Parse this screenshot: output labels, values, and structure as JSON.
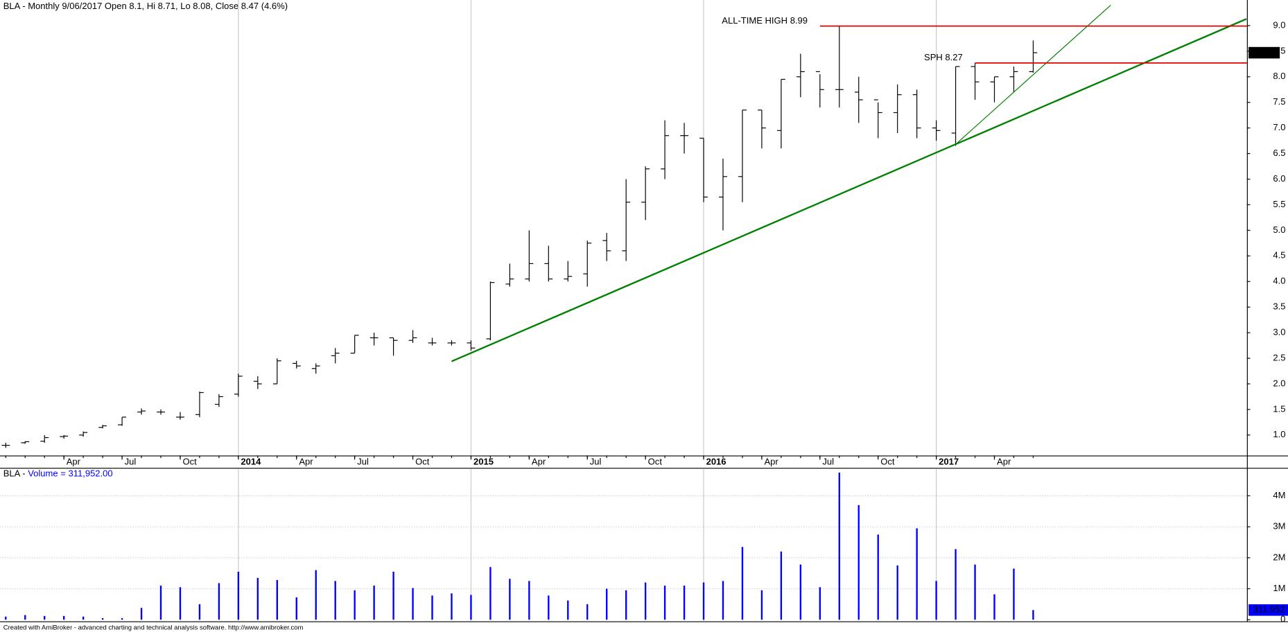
{
  "chart_data": [
    {
      "type": "ohlc",
      "title": "BLA - Monthly 9/06/2017 Open 8.1, Hi 8.71, Lo 8.08, Close 8.47 (4.6%)",
      "color": "#000000",
      "x": [
        "2013-01",
        "2013-02",
        "2013-03",
        "2013-04",
        "2013-05",
        "2013-06",
        "2013-07",
        "2013-08",
        "2013-09",
        "2013-10",
        "2013-11",
        "2013-12",
        "2014-01",
        "2014-02",
        "2014-03",
        "2014-04",
        "2014-05",
        "2014-06",
        "2014-07",
        "2014-08",
        "2014-09",
        "2014-10",
        "2014-11",
        "2014-12",
        "2015-01",
        "2015-02",
        "2015-03",
        "2015-04",
        "2015-05",
        "2015-06",
        "2015-07",
        "2015-08",
        "2015-09",
        "2015-10",
        "2015-11",
        "2015-12",
        "2016-01",
        "2016-02",
        "2016-03",
        "2016-04",
        "2016-05",
        "2016-06",
        "2016-07",
        "2016-08",
        "2016-09",
        "2016-10",
        "2016-11",
        "2016-12",
        "2017-01",
        "2017-02",
        "2017-03",
        "2017-04",
        "2017-05",
        "2017-06"
      ],
      "open": [
        0.8,
        0.85,
        0.88,
        0.97,
        1.0,
        1.15,
        1.2,
        1.45,
        1.45,
        1.35,
        1.4,
        1.6,
        1.8,
        2.05,
        2.0,
        2.4,
        2.3,
        2.55,
        2.6,
        2.9,
        2.9,
        2.85,
        2.8,
        2.8,
        2.8,
        2.88,
        3.95,
        4.05,
        4.35,
        4.05,
        4.15,
        4.8,
        4.6,
        5.55,
        6.2,
        6.85,
        6.8,
        5.65,
        6.05,
        7.35,
        6.95,
        8.0,
        8.1,
        7.75,
        7.7,
        7.55,
        7.3,
        7.65,
        7.0,
        6.9,
        8.2,
        7.9,
        8.0,
        8.1
      ],
      "high": [
        0.85,
        0.88,
        1.0,
        1.0,
        1.07,
        1.2,
        1.35,
        1.52,
        1.5,
        1.45,
        1.85,
        1.8,
        2.2,
        2.15,
        2.5,
        2.45,
        2.4,
        2.7,
        2.95,
        3.0,
        2.9,
        3.05,
        2.9,
        2.85,
        2.85,
        4.0,
        4.35,
        5.0,
        4.7,
        4.4,
        4.8,
        4.95,
        6.0,
        6.25,
        7.15,
        7.1,
        6.8,
        6.4,
        7.35,
        7.35,
        7.95,
        8.45,
        8.05,
        8.99,
        8.0,
        7.5,
        7.85,
        7.75,
        7.15,
        8.2,
        8.27,
        8.0,
        8.2,
        8.71
      ],
      "low": [
        0.75,
        0.83,
        0.85,
        0.93,
        0.97,
        1.13,
        1.18,
        1.4,
        1.4,
        1.3,
        1.35,
        1.55,
        1.75,
        1.9,
        2.0,
        2.3,
        2.2,
        2.4,
        2.6,
        2.75,
        2.55,
        2.8,
        2.75,
        2.75,
        2.65,
        2.85,
        3.9,
        4.0,
        4.0,
        4.0,
        3.9,
        4.4,
        4.4,
        5.2,
        6.0,
        6.5,
        5.55,
        5.0,
        5.55,
        6.6,
        6.6,
        7.6,
        7.4,
        7.4,
        7.1,
        6.8,
        6.9,
        6.8,
        6.75,
        6.65,
        7.55,
        7.5,
        7.7,
        8.08
      ],
      "close": [
        0.8,
        0.87,
        0.95,
        0.98,
        1.05,
        1.18,
        1.35,
        1.47,
        1.45,
        1.35,
        1.83,
        1.75,
        2.15,
        2.0,
        2.45,
        2.35,
        2.35,
        2.6,
        2.95,
        2.9,
        2.85,
        2.9,
        2.8,
        2.8,
        2.7,
        3.98,
        4.05,
        4.35,
        4.05,
        4.1,
        4.75,
        4.6,
        5.55,
        6.2,
        6.85,
        6.85,
        5.65,
        6.05,
        7.35,
        7.0,
        7.95,
        8.1,
        7.75,
        7.75,
        7.55,
        7.3,
        7.65,
        7.0,
        6.95,
        8.2,
        7.9,
        8.0,
        8.1,
        8.47
      ],
      "ylim": [
        0.6,
        9.5
      ],
      "yticks": [
        {
          "value": 1,
          "label": "1.0"
        },
        {
          "value": 1.5,
          "label": "1.5"
        },
        {
          "value": 2,
          "label": "2.0"
        },
        {
          "value": 2.5,
          "label": "2.5"
        },
        {
          "value": 3,
          "label": "3.0"
        },
        {
          "value": 3.5,
          "label": "3.5"
        },
        {
          "value": 4,
          "label": "4.0"
        },
        {
          "value": 4.5,
          "label": "4.5"
        },
        {
          "value": 5,
          "label": "5.0"
        },
        {
          "value": 5.5,
          "label": "5.5"
        },
        {
          "value": 6,
          "label": "6.0"
        },
        {
          "value": 6.5,
          "label": "6.5"
        },
        {
          "value": 7,
          "label": "7.0"
        },
        {
          "value": 7.5,
          "label": "7.5"
        },
        {
          "value": 8,
          "label": "8.0"
        },
        {
          "value": 8.5,
          "label": "8.5"
        },
        {
          "value": 9,
          "label": "9.0"
        }
      ],
      "xticks": [
        {
          "value": "2013-04",
          "label": "Apr"
        },
        {
          "value": "2013-07",
          "label": "Jul"
        },
        {
          "value": "2013-10",
          "label": "Oct"
        },
        {
          "value": "2014-01",
          "label": "2014"
        },
        {
          "value": "2014-04",
          "label": "Apr"
        },
        {
          "value": "2014-07",
          "label": "Jul"
        },
        {
          "value": "2014-10",
          "label": "Oct"
        },
        {
          "value": "2015-01",
          "label": "2015"
        },
        {
          "value": "2015-04",
          "label": "Apr"
        },
        {
          "value": "2015-07",
          "label": "Jul"
        },
        {
          "value": "2015-10",
          "label": "Oct"
        },
        {
          "value": "2016-01",
          "label": "2016"
        },
        {
          "value": "2016-04",
          "label": "Apr"
        },
        {
          "value": "2016-07",
          "label": "Jul"
        },
        {
          "value": "2016-10",
          "label": "Oct"
        },
        {
          "value": "2017-01",
          "label": "2017"
        },
        {
          "value": "2017-04",
          "label": "Apr"
        }
      ],
      "levels": [
        {
          "label": "ALL-TIME HIGH 8.99",
          "value": 8.99,
          "start": "2016-07",
          "color": "#e00000"
        },
        {
          "label": "SPH 8.27",
          "value": 8.27,
          "start": "2017-03",
          "color": "#e00000"
        }
      ],
      "trendlines": [
        {
          "x": [
            "2014-12",
            "2018-05"
          ],
          "y": [
            2.44,
            9.13
          ],
          "color": "#008000",
          "width": 2
        },
        {
          "x": [
            "2017-02",
            "2017-10"
          ],
          "y": [
            6.68,
            9.4
          ],
          "color": "#008000",
          "width": 1
        }
      ]
    },
    {
      "type": "bar",
      "title": "BLA - ",
      "subtitle": "Volume = 311,952.00",
      "color": "#0000ff",
      "values": [
        100000,
        150000,
        120000,
        120000,
        100000,
        50000,
        50000,
        380000,
        1100000,
        1050000,
        500000,
        1180000,
        1550000,
        1350000,
        1280000,
        720000,
        1600000,
        1250000,
        950000,
        1100000,
        1550000,
        1020000,
        780000,
        850000,
        800000,
        1700000,
        1320000,
        1250000,
        780000,
        620000,
        500000,
        1000000,
        950000,
        1200000,
        1100000,
        1100000,
        1200000,
        1250000,
        2350000,
        950000,
        2200000,
        1780000,
        1050000,
        4750000,
        3700000,
        2750000,
        1750000,
        2950000,
        1250000,
        2280000,
        1780000,
        820000,
        1650000,
        311952
      ],
      "value_labels": [
        null,
        null,
        null,
        null,
        null,
        null,
        null,
        null,
        null,
        null,
        null,
        null,
        null,
        null,
        null,
        null,
        null,
        null,
        null,
        null,
        null,
        null,
        null,
        null,
        null,
        null,
        null,
        null,
        null,
        null,
        null,
        null,
        null,
        null,
        null,
        null,
        null,
        null,
        null,
        null,
        null,
        null,
        null,
        null,
        null,
        null,
        null,
        null,
        null,
        null,
        null,
        null,
        null,
        "311,952"
      ],
      "ylim": [
        0,
        4850000
      ],
      "yticks": [
        0,
        {
          "value": 1000000,
          "label": "1M"
        },
        {
          "value": 2000000,
          "label": "2M"
        },
        {
          "value": 3000000,
          "label": "3M"
        },
        {
          "value": 4000000,
          "label": "4M"
        }
      ],
      "grid": true,
      "footer": "Created with AmiBroker - advanced charting and technical analysis software. http://www.amibroker.com"
    }
  ]
}
